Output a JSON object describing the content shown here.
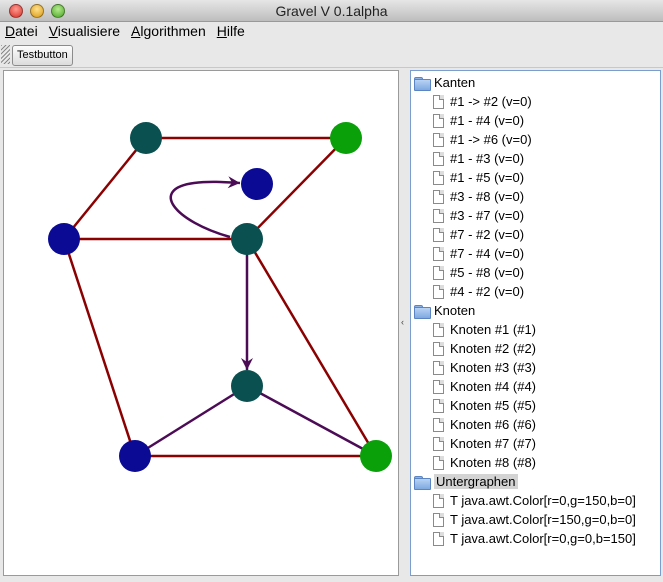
{
  "window": {
    "title": "Gravel V 0.1alpha"
  },
  "menubar": {
    "items": [
      {
        "label": "Datei",
        "mnemonic": "D",
        "rest": "atei"
      },
      {
        "label": "Visualisiere",
        "mnemonic": "V",
        "rest": "isualisiere"
      },
      {
        "label": "Algorithmen",
        "mnemonic": "A",
        "rest": "lgorithmen"
      },
      {
        "label": "Hilfe",
        "mnemonic": "H",
        "rest": "ilfe"
      }
    ]
  },
  "toolbar": {
    "test_label": "Testbutton"
  },
  "graph": {
    "colors": {
      "edge_red": "#8b0000",
      "edge_purple": "#4b0b55",
      "node_teal": "#0a5050",
      "node_blue": "#0a0a94",
      "node_green": "#0aa00a"
    },
    "nodes": [
      {
        "id": "1",
        "color": "node_teal"
      },
      {
        "id": "2",
        "color": "node_green"
      },
      {
        "id": "3",
        "color": "node_blue"
      },
      {
        "id": "4",
        "color": "node_blue"
      },
      {
        "id": "5",
        "color": "node_teal"
      },
      {
        "id": "6",
        "color": "node_teal"
      },
      {
        "id": "7",
        "color": "node_blue"
      },
      {
        "id": "8",
        "color": "node_green"
      }
    ]
  },
  "tree": {
    "kanten": {
      "label": "Kanten",
      "items": [
        "#1 -> #2 (v=0)",
        "#1 - #4 (v=0)",
        "#1 -> #6 (v=0)",
        "#1 - #3 (v=0)",
        "#1 - #5 (v=0)",
        "#3 - #8 (v=0)",
        "#3 - #7 (v=0)",
        "#7 - #2 (v=0)",
        "#7 - #4 (v=0)",
        "#5 - #8 (v=0)",
        "#4 - #2 (v=0)"
      ]
    },
    "knoten": {
      "label": "Knoten",
      "items": [
        "Knoten #1 (#1)",
        "Knoten #2 (#2)",
        "Knoten #3 (#3)",
        "Knoten #4 (#4)",
        "Knoten #5 (#5)",
        "Knoten #6 (#6)",
        "Knoten #7 (#7)",
        "Knoten #8 (#8)"
      ]
    },
    "untergraphen": {
      "label": "Untergraphen",
      "items": [
        "T java.awt.Color[r=0,g=150,b=0]",
        "T java.awt.Color[r=150,g=0,b=0]",
        "T java.awt.Color[r=0,g=0,b=150]"
      ]
    }
  }
}
